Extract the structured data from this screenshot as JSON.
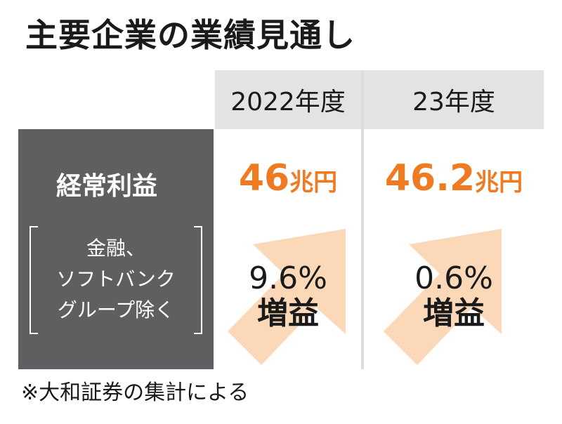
{
  "title": "主要企業の業績見通し",
  "columns": [
    "2022年度",
    "23年度"
  ],
  "row_label": "経常利益",
  "note_lines": [
    "金融、",
    "ソフトバンク",
    "グループ除く"
  ],
  "values": [
    {
      "number": "46",
      "unit": "兆円"
    },
    {
      "number": "46.2",
      "unit": "兆円"
    }
  ],
  "growth": [
    {
      "percent": "9.6%",
      "label": "増益"
    },
    {
      "percent": "0.6%",
      "label": "増益"
    }
  ],
  "footnote": "※大和証券の集計による",
  "colors": {
    "accent": "#ee7a22",
    "arrow": "#fbd9b8",
    "label_box": "#5f5e60",
    "header_bg": "#e3e3e4"
  },
  "icons": [
    "up-right-arrow-icon"
  ]
}
